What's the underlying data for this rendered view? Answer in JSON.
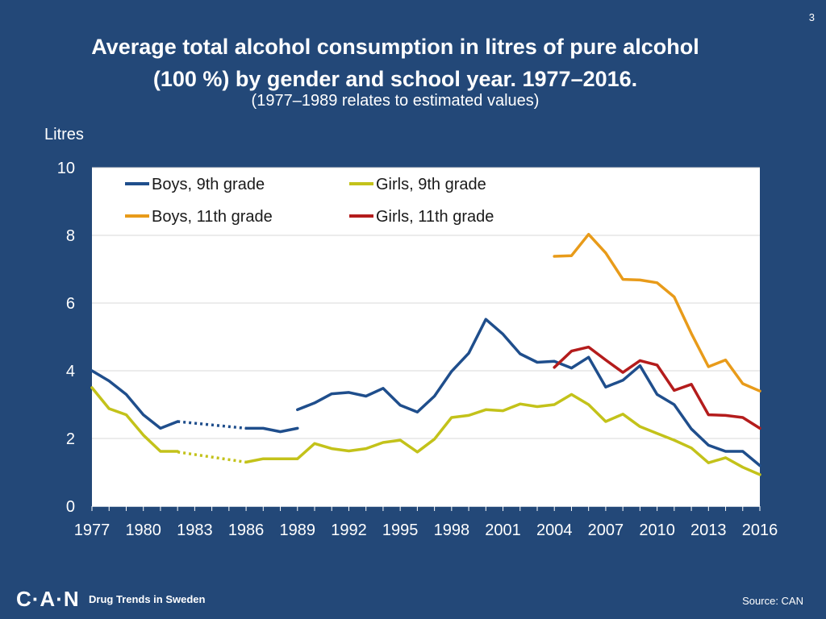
{
  "slide_number": "3",
  "title_line1": "Average total alcohol consumption in litres of pure alcohol",
  "title_line2": "(100 %) by gender and school year. 1977–2016.",
  "subtitle": "(1977–1989 relates to estimated values)",
  "footer": {
    "logo": "C·A·N",
    "text": "Drug Trends in Sweden",
    "source": "Source: CAN"
  },
  "chart_data": {
    "type": "line",
    "title": "Average total alcohol consumption in litres of pure alcohol (100 %) by gender and school year. 1977–2016.",
    "xlabel": "",
    "ylabel": "Litres",
    "xlim": [
      1977,
      2016
    ],
    "ylim": [
      0,
      10
    ],
    "x_ticks": [
      1977,
      1980,
      1983,
      1986,
      1989,
      1992,
      1995,
      1998,
      2001,
      2004,
      2007,
      2010,
      2013,
      2016
    ],
    "y_ticks": [
      0,
      2,
      4,
      6,
      8,
      10
    ],
    "grid": true,
    "legend_position": "top",
    "series": [
      {
        "name": "Boys, 9th grade",
        "color": "#1f4e8c",
        "segments": [
          {
            "style": "solid",
            "points": [
              [
                1977,
                4.0
              ],
              [
                1978,
                3.7
              ],
              [
                1979,
                3.3
              ],
              [
                1980,
                2.7
              ],
              [
                1981,
                2.3
              ],
              [
                1982,
                2.5
              ]
            ]
          },
          {
            "style": "dotted",
            "points": [
              [
                1982,
                2.5
              ],
              [
                1986,
                2.3
              ]
            ]
          },
          {
            "style": "solid",
            "points": [
              [
                1986,
                2.3
              ],
              [
                1987,
                2.3
              ],
              [
                1988,
                2.2
              ],
              [
                1989,
                2.3
              ]
            ]
          },
          {
            "style": "solid",
            "points": [
              [
                1989,
                2.85
              ],
              [
                1990,
                3.05
              ],
              [
                1991,
                3.32
              ],
              [
                1992,
                3.36
              ],
              [
                1993,
                3.25
              ],
              [
                1994,
                3.48
              ],
              [
                1995,
                2.98
              ],
              [
                1996,
                2.78
              ],
              [
                1997,
                3.25
              ],
              [
                1998,
                3.98
              ],
              [
                1999,
                4.52
              ],
              [
                2000,
                5.52
              ],
              [
                2001,
                5.08
              ],
              [
                2002,
                4.5
              ],
              [
                2003,
                4.25
              ],
              [
                2004,
                4.28
              ],
              [
                2005,
                4.08
              ],
              [
                2006,
                4.4
              ],
              [
                2007,
                3.52
              ],
              [
                2008,
                3.72
              ],
              [
                2009,
                4.15
              ],
              [
                2010,
                3.3
              ],
              [
                2011,
                3.0
              ],
              [
                2012,
                2.28
              ],
              [
                2013,
                1.8
              ],
              [
                2014,
                1.62
              ],
              [
                2015,
                1.62
              ],
              [
                2016,
                1.2
              ]
            ]
          }
        ]
      },
      {
        "name": "Girls, 9th grade",
        "color": "#c3c21a",
        "segments": [
          {
            "style": "solid",
            "points": [
              [
                1977,
                3.5
              ],
              [
                1978,
                2.88
              ],
              [
                1979,
                2.7
              ],
              [
                1980,
                2.1
              ],
              [
                1981,
                1.62
              ],
              [
                1982,
                1.62
              ]
            ]
          },
          {
            "style": "dotted",
            "points": [
              [
                1982,
                1.6
              ],
              [
                1986,
                1.3
              ]
            ]
          },
          {
            "style": "solid",
            "points": [
              [
                1986,
                1.3
              ],
              [
                1987,
                1.4
              ],
              [
                1988,
                1.4
              ],
              [
                1989,
                1.4
              ],
              [
                1990,
                1.85
              ],
              [
                1991,
                1.7
              ],
              [
                1992,
                1.63
              ],
              [
                1993,
                1.7
              ],
              [
                1994,
                1.88
              ],
              [
                1995,
                1.95
              ],
              [
                1996,
                1.6
              ],
              [
                1997,
                1.98
              ],
              [
                1998,
                2.62
              ],
              [
                1999,
                2.68
              ],
              [
                2000,
                2.85
              ],
              [
                2001,
                2.82
              ],
              [
                2002,
                3.02
              ],
              [
                2003,
                2.94
              ],
              [
                2004,
                3.0
              ],
              [
                2005,
                3.3
              ],
              [
                2006,
                3.0
              ],
              [
                2007,
                2.5
              ],
              [
                2008,
                2.72
              ],
              [
                2009,
                2.35
              ],
              [
                2010,
                2.15
              ],
              [
                2011,
                1.95
              ],
              [
                2012,
                1.72
              ],
              [
                2013,
                1.28
              ],
              [
                2014,
                1.43
              ],
              [
                2015,
                1.15
              ],
              [
                2016,
                0.93
              ]
            ]
          }
        ]
      },
      {
        "name": "Boys, 11th grade",
        "color": "#e89b1a",
        "segments": [
          {
            "style": "solid",
            "points": [
              [
                2004,
                7.38
              ],
              [
                2005,
                7.4
              ],
              [
                2006,
                8.03
              ],
              [
                2007,
                7.48
              ],
              [
                2008,
                6.7
              ],
              [
                2009,
                6.68
              ],
              [
                2010,
                6.6
              ],
              [
                2011,
                6.18
              ],
              [
                2012,
                5.1
              ],
              [
                2013,
                4.12
              ],
              [
                2014,
                4.32
              ],
              [
                2015,
                3.62
              ],
              [
                2016,
                3.4
              ]
            ]
          }
        ]
      },
      {
        "name": "Girls, 11th grade",
        "color": "#b41c1c",
        "segments": [
          {
            "style": "solid",
            "points": [
              [
                2004,
                4.1
              ],
              [
                2005,
                4.58
              ],
              [
                2006,
                4.7
              ],
              [
                2007,
                4.32
              ],
              [
                2008,
                3.95
              ],
              [
                2009,
                4.3
              ],
              [
                2010,
                4.17
              ],
              [
                2011,
                3.42
              ],
              [
                2012,
                3.6
              ],
              [
                2013,
                2.7
              ],
              [
                2014,
                2.68
              ],
              [
                2015,
                2.62
              ],
              [
                2016,
                2.3
              ]
            ]
          }
        ]
      }
    ]
  }
}
